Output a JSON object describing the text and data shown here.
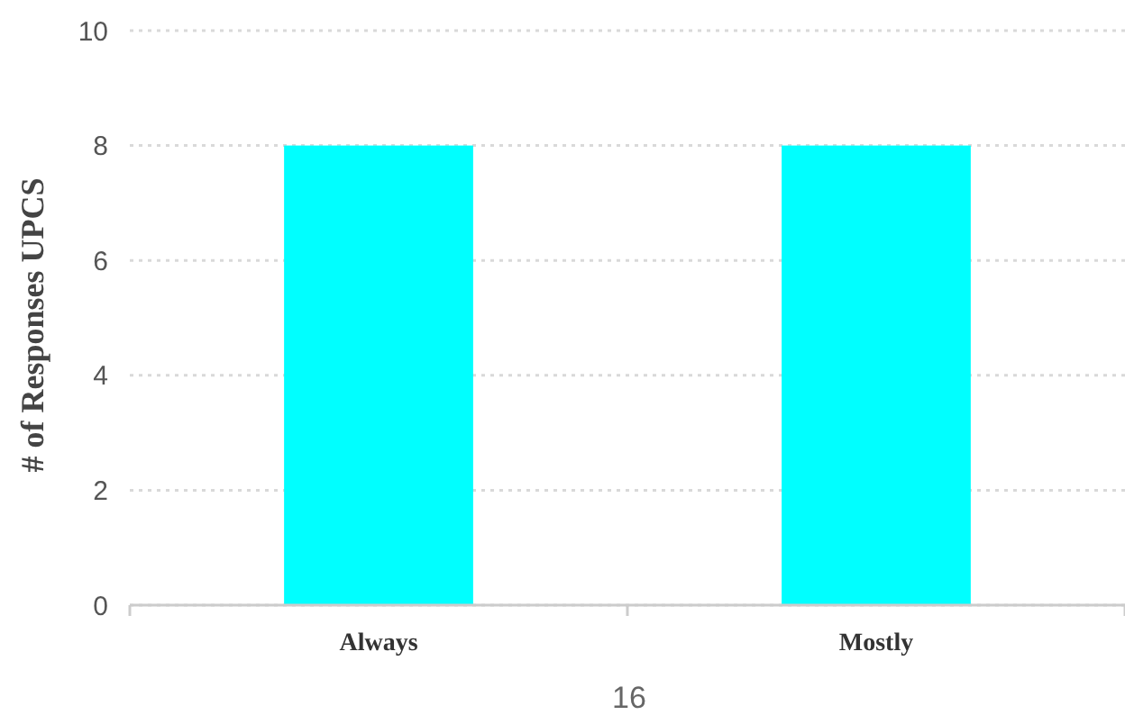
{
  "chart_data": {
    "type": "bar",
    "xlabel": "16",
    "ylabel": "# of Responses UPCS",
    "categories": [
      "Always",
      "Mostly"
    ],
    "values": [
      8,
      8
    ],
    "color": "#00ffff",
    "ylim": [
      0,
      10
    ],
    "yticks": [
      0,
      2,
      4,
      6,
      8,
      10
    ],
    "grid": "y"
  }
}
